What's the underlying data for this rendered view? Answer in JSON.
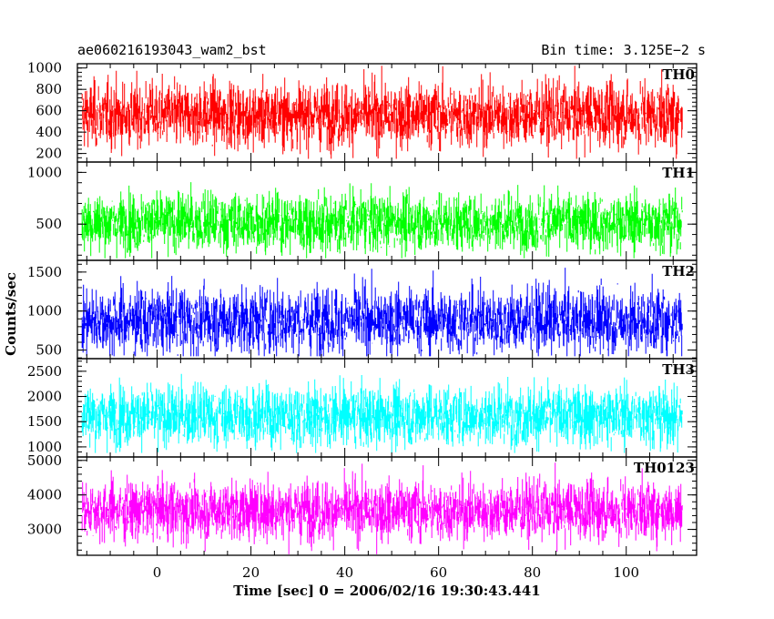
{
  "header": {
    "title": "ae060216193043_wam2_bst",
    "bin_time": "Bin time: 3.125E−2 s"
  },
  "chart_data": {
    "type": "line",
    "xlabel": "Time [sec] 0 = 2006/02/16 19:30:43.441",
    "ylabel": "Counts/sec",
    "xlim": [
      -17,
      115
    ],
    "x_range": [
      -16,
      112
    ],
    "x_ticks": [
      "0",
      "20",
      "40",
      "60",
      "80",
      "100"
    ],
    "x_tick_values": [
      0,
      20,
      40,
      60,
      80,
      100
    ],
    "panels": [
      {
        "label": "TH0",
        "color": "#ff0000",
        "ylim": [
          120,
          1040
        ],
        "y_ticks": [
          "200",
          "400",
          "600",
          "800",
          "1000"
        ],
        "y_tick_values": [
          200,
          400,
          600,
          800,
          1000
        ],
        "mean": 560,
        "spread": 150,
        "min": 150,
        "max": 1020
      },
      {
        "label": "TH1",
        "color": "#00ff00",
        "ylim": [
          150,
          1100
        ],
        "y_ticks": [
          "500",
          "1000"
        ],
        "y_tick_values": [
          500,
          1000
        ],
        "mean": 520,
        "spread": 140,
        "min": 170,
        "max": 1080
      },
      {
        "label": "TH2",
        "color": "#0000ff",
        "ylim": [
          390,
          1650
        ],
        "y_ticks": [
          "500",
          "1000",
          "1500"
        ],
        "y_tick_values": [
          500,
          1000,
          1500
        ],
        "mean": 880,
        "spread": 210,
        "min": 420,
        "max": 1630
      },
      {
        "label": "TH3",
        "color": "#00ffff",
        "ylim": [
          800,
          2750
        ],
        "y_ticks": [
          "1000",
          "1500",
          "2000",
          "2500"
        ],
        "y_tick_values": [
          1000,
          1500,
          2000,
          2500
        ],
        "mean": 1620,
        "spread": 300,
        "min": 880,
        "max": 2700
      },
      {
        "label": "TH0123",
        "color": "#ff00ff",
        "ylim": [
          2250,
          5100
        ],
        "y_ticks": [
          "3000",
          "4000",
          "5000"
        ],
        "y_tick_values": [
          3000,
          4000,
          5000
        ],
        "mean": 3550,
        "spread": 430,
        "min": 2280,
        "max": 5000
      }
    ]
  }
}
